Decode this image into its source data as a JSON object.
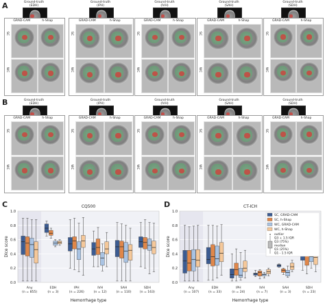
{
  "panels": {
    "A": {
      "letter": "A"
    },
    "B": {
      "letter": "B"
    },
    "C": {
      "letter": "C"
    },
    "D": {
      "letter": "D"
    }
  },
  "method_headers": {
    "gradcam": "GRAD-CAM",
    "hshap": "h-Shap"
  },
  "row_labels": {
    "sc": "SC",
    "wc": "WC"
  },
  "hemorrhage_cases": [
    {
      "top": "Ground-truth",
      "sub": "(EDH)"
    },
    {
      "top": "Ground-truth",
      "sub": "(IPH)"
    },
    {
      "top": "Ground-truth",
      "sub": "(IVH)"
    },
    {
      "top": "Ground-truth",
      "sub": "(SAH)"
    },
    {
      "top": "Ground-truth",
      "sub": "(SDH)"
    }
  ],
  "colors": {
    "sc_gradcam": "#3b5b92",
    "sc_hshap": "#e0874a",
    "wc_gradcam": "#a9c3e3",
    "wc_hshap": "#f5c89a",
    "green_overlay": "#52b26a",
    "red_overlay": "#d0403a",
    "shade": "#e6e6ef"
  },
  "chart_data": [
    {
      "type": "box",
      "title": "CQ500",
      "xlabel": "Hemorrhage type",
      "ylabel": "Dice score",
      "ylim": [
        0.0,
        1.0
      ],
      "yticks": [
        "0.0",
        "0.2",
        "0.4",
        "0.6",
        "0.8",
        "1.0"
      ],
      "categories": [
        {
          "name": "Any",
          "n": "(n = 855)"
        },
        {
          "name": "EDH",
          "n": "(n = 3)"
        },
        {
          "name": "IPH",
          "n": "(n = 226)"
        },
        {
          "name": "IVH",
          "n": "(n = 12)"
        },
        {
          "name": "SAH",
          "n": "(n = 110)"
        },
        {
          "name": "SDH",
          "n": "(n = 163)"
        }
      ],
      "series": [
        {
          "name": "SC, GRAD-CAM",
          "boxes": [
            [
              0.02,
              0.39,
              0.57,
              0.65,
              0.9
            ],
            [
              0.65,
              0.7,
              0.76,
              0.82,
              0.86
            ],
            [
              0.2,
              0.44,
              0.54,
              0.63,
              0.88
            ],
            [
              0.22,
              0.38,
              0.47,
              0.56,
              0.72
            ],
            [
              0.02,
              0.36,
              0.5,
              0.59,
              0.84
            ],
            [
              0.22,
              0.49,
              0.57,
              0.64,
              0.84
            ]
          ]
        },
        {
          "name": "SC, h-Shap",
          "boxes": [
            [
              0.02,
              0.37,
              0.55,
              0.64,
              0.9
            ],
            [
              0.62,
              0.66,
              0.69,
              0.73,
              0.76
            ],
            [
              0.18,
              0.47,
              0.58,
              0.64,
              0.9
            ],
            [
              0.22,
              0.39,
              0.49,
              0.61,
              0.77
            ],
            [
              0.02,
              0.34,
              0.5,
              0.58,
              0.82
            ],
            [
              0.2,
              0.47,
              0.56,
              0.63,
              0.88
            ]
          ]
        },
        {
          "name": "WC, GRAD-CAM",
          "boxes": [
            [
              0.02,
              0.35,
              0.53,
              0.62,
              0.88
            ],
            [
              0.5,
              0.52,
              0.55,
              0.58,
              0.6
            ],
            [
              0.15,
              0.32,
              0.47,
              0.57,
              0.83
            ],
            [
              0.16,
              0.24,
              0.34,
              0.42,
              0.54
            ],
            [
              0.02,
              0.28,
              0.44,
              0.56,
              0.8
            ],
            [
              0.12,
              0.45,
              0.52,
              0.61,
              0.84
            ]
          ]
        },
        {
          "name": "WC, h-Shap",
          "boxes": [
            [
              0.02,
              0.27,
              0.46,
              0.57,
              0.88
            ],
            [
              0.52,
              0.54,
              0.56,
              0.58,
              0.6
            ],
            [
              0.1,
              0.49,
              0.58,
              0.66,
              0.91
            ],
            [
              0.22,
              0.4,
              0.47,
              0.57,
              0.7
            ],
            [
              0.02,
              0.31,
              0.45,
              0.53,
              0.76
            ],
            [
              0.15,
              0.4,
              0.49,
              0.58,
              0.83
            ]
          ]
        }
      ]
    },
    {
      "type": "box",
      "title": "CT-ICH",
      "xlabel": "Hemorrhage type",
      "ylabel": "Dice score",
      "ylim": [
        0.0,
        1.0
      ],
      "yticks": [
        "0.0",
        "0.2",
        "0.4",
        "0.6",
        "0.8",
        "1.0"
      ],
      "categories": [
        {
          "name": "Any",
          "n": "(n = 107)"
        },
        {
          "name": "EDH",
          "n": "(n = 33)"
        },
        {
          "name": "IPH",
          "n": "(n = 24)"
        },
        {
          "name": "IVH",
          "n": "(n = 7)"
        },
        {
          "name": "SAH",
          "n": "(n = 3)"
        },
        {
          "name": "SDH",
          "n": "(n = 23)"
        }
      ],
      "series": [
        {
          "name": "SC, GRAD-CAM",
          "boxes": [
            [
              0.02,
              0.13,
              0.3,
              0.45,
              0.8
            ],
            [
              0.03,
              0.26,
              0.32,
              0.49,
              0.8
            ],
            [
              0.02,
              0.06,
              0.11,
              0.19,
              0.4
            ],
            [
              0.08,
              0.1,
              0.12,
              0.13,
              0.17
            ],
            [
              0.21,
              0.22,
              0.24,
              0.25,
              0.26
            ],
            [
              0.17,
              0.31,
              0.45,
              0.53,
              0.75
            ]
          ]
        },
        {
          "name": "SC, h-Shap",
          "boxes": [
            [
              0.02,
              0.16,
              0.27,
              0.45,
              0.78
            ],
            [
              0.03,
              0.23,
              0.36,
              0.53,
              0.8
            ],
            [
              0.02,
              0.1,
              0.18,
              0.27,
              0.47
            ],
            [
              0.05,
              0.09,
              0.14,
              0.16,
              0.18
            ],
            [
              0.11,
              0.14,
              0.17,
              0.19,
              0.2
            ],
            [
              0.12,
              0.24,
              0.38,
              0.48,
              0.79
            ]
          ]
        },
        {
          "name": "WC, GRAD-CAM",
          "boxes": [
            [
              0.02,
              0.16,
              0.32,
              0.46,
              0.79
            ],
            [
              0.06,
              0.24,
              0.33,
              0.51,
              0.79
            ],
            [
              0.03,
              0.07,
              0.1,
              0.2,
              0.42
            ],
            [
              0.06,
              0.09,
              0.11,
              0.12,
              0.14
            ],
            [
              0.07,
              0.09,
              0.14,
              0.17,
              0.23
            ],
            [
              0.2,
              0.29,
              0.36,
              0.45,
              0.7
            ]
          ]
        },
        {
          "name": "WC, h-Shap",
          "boxes": [
            [
              0.02,
              0.22,
              0.31,
              0.46,
              0.8
            ],
            [
              0.1,
              0.29,
              0.41,
              0.56,
              0.81
            ],
            [
              0.06,
              0.15,
              0.2,
              0.3,
              0.45
            ],
            [
              0.09,
              0.12,
              0.15,
              0.18,
              0.2
            ],
            [
              0.15,
              0.18,
              0.22,
              0.27,
              0.31
            ],
            [
              0.15,
              0.25,
              0.35,
              0.42,
              0.56
            ]
          ]
        }
      ],
      "legend": {
        "entries": [
          "SC, GRAD-CAM",
          "SC, h-Shap",
          "WC, GRAD-CAM",
          "WC, h-Shap"
        ],
        "key": [
          "outlier",
          "Q3 + 1.5 IQR",
          "Q3 (75%)",
          "median",
          "Q1 (25%)",
          "Q1 - 1.5 IQR"
        ],
        "placement": "top-right"
      }
    }
  ]
}
